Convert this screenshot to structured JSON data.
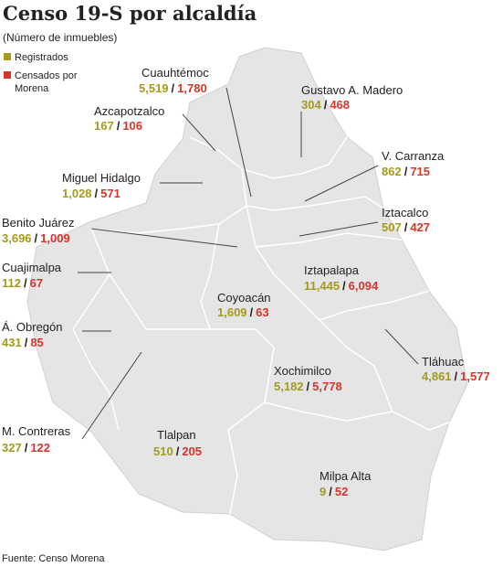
{
  "header": {
    "title": "Censo 19-S por alcaldía",
    "subtitle": "(Número de inmuebles)"
  },
  "legend": [
    {
      "label": "Registrados",
      "color": "#a49b1c"
    },
    {
      "label": "Censados por Morena",
      "color": "#d8352a"
    }
  ],
  "separator": "/",
  "regions": [
    {
      "name": "Cuauhtémoc",
      "registrados": "5,519",
      "censados": "1,780"
    },
    {
      "name": "Gustavo A. Madero",
      "registrados": "304",
      "censados": "468"
    },
    {
      "name": "Azcapotzalco",
      "registrados": "167",
      "censados": "106"
    },
    {
      "name": "V. Carranza",
      "registrados": "862",
      "censados": "715"
    },
    {
      "name": "Miguel Hidalgo",
      "registrados": "1,028",
      "censados": "571"
    },
    {
      "name": "Iztacalco",
      "registrados": "507",
      "censados": "427"
    },
    {
      "name": "Benito Juárez",
      "registrados": "3,696",
      "censados": "1,009"
    },
    {
      "name": "Cuajimalpa",
      "registrados": "112",
      "censados": "67"
    },
    {
      "name": "Iztapalapa",
      "registrados": "11,445",
      "censados": "6,094"
    },
    {
      "name": "Coyoacán",
      "registrados": "1,609",
      "censados": "63"
    },
    {
      "name": "Á. Obregón",
      "registrados": "431",
      "censados": "85"
    },
    {
      "name": "Tláhuac",
      "registrados": "4,861",
      "censados": "1,577"
    },
    {
      "name": "Xochimilco",
      "registrados": "5,182",
      "censados": "5,778"
    },
    {
      "name": "M. Contreras",
      "registrados": "327",
      "censados": "122"
    },
    {
      "name": "Tlalpan",
      "registrados": "510",
      "censados": "205"
    },
    {
      "name": "Milpa Alta",
      "registrados": "9",
      "censados": "52"
    }
  ],
  "footer": "Fuente: Censo Morena"
}
